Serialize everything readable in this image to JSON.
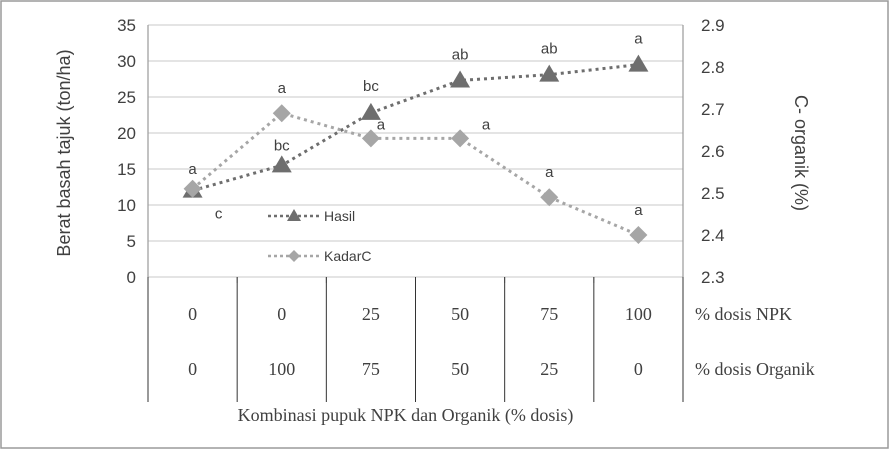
{
  "chart_data": {
    "type": "line",
    "categories": [
      "0 / 0",
      "0 / 100",
      "25 / 75",
      "50 / 50",
      "75 / 25",
      "100 / 0"
    ],
    "x_title": "Kombinasi  pupuk NPK dan Organik (% dosis)",
    "y_left": {
      "label": "Berat basah tajuk (ton/ha)",
      "ylim": [
        0,
        35
      ],
      "ticks": [
        "0",
        "5",
        "10",
        "15",
        "20",
        "25",
        "30",
        "35"
      ]
    },
    "y_right": {
      "label": "C- organik (%)",
      "ylim": [
        2.3,
        2.9
      ],
      "ticks": [
        "2.3",
        "2.4",
        "2.5",
        "2.6",
        "2.7",
        "2.8",
        "2.9"
      ]
    },
    "series": [
      {
        "name": "Hasil",
        "axis": "left",
        "marker": "triangle",
        "color": "#6e6e6e",
        "values": [
          12.0,
          15.5,
          22.8,
          27.3,
          28.1,
          29.5
        ],
        "letters": [
          "c",
          "bc",
          "bc",
          "ab",
          "ab",
          "a"
        ]
      },
      {
        "name": "KadarC",
        "axis": "right",
        "marker": "diamond",
        "color": "#a6a6a6",
        "values": [
          2.51,
          2.69,
          2.63,
          2.63,
          2.49,
          2.4
        ],
        "letters": [
          "a",
          "a",
          "a",
          "a",
          "a",
          "a"
        ]
      }
    ],
    "table": {
      "rows": [
        {
          "label": "% dosis NPK",
          "values": [
            "0",
            "0",
            "25",
            "50",
            "75",
            "100"
          ]
        },
        {
          "label": "% dosis Organik",
          "values": [
            "0",
            "100",
            "75",
            "50",
            "25",
            "0"
          ]
        }
      ]
    },
    "grid": true,
    "legend": "inside-left"
  },
  "colors": {
    "grid": "#c8c8c8",
    "frame": "#9a9a9a",
    "text": "#404040"
  }
}
